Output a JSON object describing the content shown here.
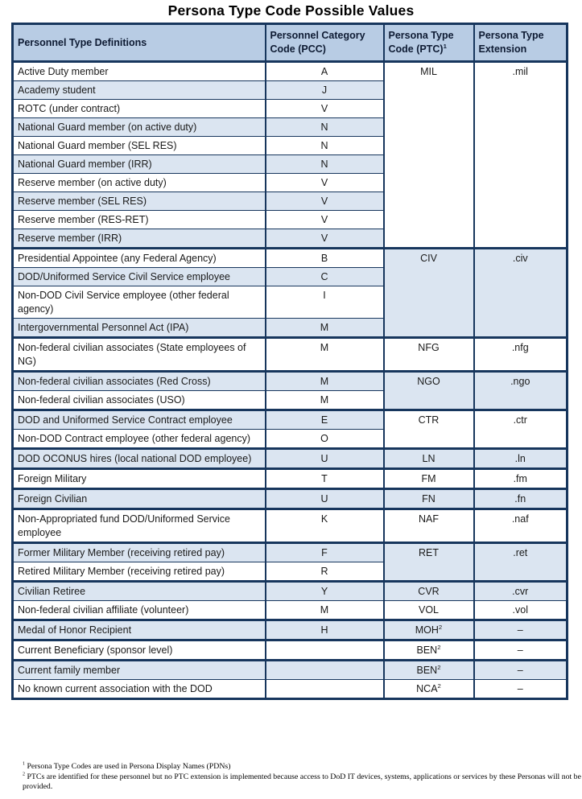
{
  "page": {
    "title": "Persona Type Code Possible Values"
  },
  "table": {
    "headers": [
      {
        "text": "Personnel Type Definitions",
        "sup": null
      },
      {
        "text": "Personnel Category Code (PCC)",
        "sup": null
      },
      {
        "text": "Persona Type Code (PTC)",
        "sup": "1"
      },
      {
        "text": "Persona Type Extension",
        "sup": null
      }
    ],
    "rows": [
      {
        "def": "Active Duty member",
        "pcc": "A",
        "shade": "w",
        "thick": false,
        "group": {
          "ptc": "MIL",
          "sup": null,
          "ext": ".mil",
          "span": 10,
          "shade": "w"
        }
      },
      {
        "def": "Academy student",
        "pcc": "J",
        "shade": "b",
        "thick": false
      },
      {
        "def": "ROTC (under contract)",
        "pcc": "V",
        "shade": "w",
        "thick": false
      },
      {
        "def": "National Guard member (on active duty)",
        "pcc": "N",
        "shade": "b",
        "thick": false
      },
      {
        "def": "National Guard member (SEL RES)",
        "pcc": "N",
        "shade": "w",
        "thick": false
      },
      {
        "def": "National Guard member (IRR)",
        "pcc": "N",
        "shade": "b",
        "thick": false
      },
      {
        "def": "Reserve member (on active duty)",
        "pcc": "V",
        "shade": "w",
        "thick": false
      },
      {
        "def": "Reserve member (SEL RES)",
        "pcc": "V",
        "shade": "b",
        "thick": false
      },
      {
        "def": "Reserve member (RES-RET)",
        "pcc": "V",
        "shade": "w",
        "thick": false
      },
      {
        "def": "Reserve member (IRR)",
        "pcc": "V",
        "shade": "b",
        "thick": false
      },
      {
        "def": "Presidential Appointee (any Federal Agency)",
        "pcc": "B",
        "shade": "w",
        "thick": true,
        "group": {
          "ptc": "CIV",
          "sup": null,
          "ext": ".civ",
          "span": 4,
          "shade": "b"
        }
      },
      {
        "def": "DOD/Uniformed Service Civil Service employee",
        "pcc": "C",
        "shade": "b",
        "thick": false
      },
      {
        "def": "Non-DOD Civil Service employee (other federal agency)",
        "pcc": "I",
        "shade": "w",
        "thick": false
      },
      {
        "def": "Intergovernmental Personnel Act (IPA)",
        "pcc": "M",
        "shade": "b",
        "thick": false
      },
      {
        "def": "Non-federal civilian associates (State employees of NG)",
        "pcc": "M",
        "shade": "w",
        "thick": true,
        "group": {
          "ptc": "NFG",
          "sup": null,
          "ext": ".nfg",
          "span": 1,
          "shade": "w"
        }
      },
      {
        "def": "Non-federal civilian associates (Red Cross)",
        "pcc": "M",
        "shade": "b",
        "thick": true,
        "group": {
          "ptc": "NGO",
          "sup": null,
          "ext": ".ngo",
          "span": 2,
          "shade": "b"
        }
      },
      {
        "def": "Non-federal civilian associates (USO)",
        "pcc": "M",
        "shade": "w",
        "thick": false
      },
      {
        "def": "DOD and Uniformed Service Contract employee",
        "pcc": "E",
        "shade": "b",
        "thick": true,
        "group": {
          "ptc": "CTR",
          "sup": null,
          "ext": ".ctr",
          "span": 2,
          "shade": "w"
        }
      },
      {
        "def": "Non-DOD Contract employee (other federal agency)",
        "pcc": "O",
        "shade": "w",
        "thick": false
      },
      {
        "def": "DOD OCONUS hires (local national DOD employee)",
        "pcc": "U",
        "shade": "b",
        "thick": true,
        "group": {
          "ptc": "LN",
          "sup": null,
          "ext": ".ln",
          "span": 1,
          "shade": "b"
        }
      },
      {
        "def": "Foreign Military",
        "pcc": "T",
        "shade": "w",
        "thick": true,
        "group": {
          "ptc": "FM",
          "sup": null,
          "ext": ".fm",
          "span": 1,
          "shade": "w"
        }
      },
      {
        "def": "Foreign Civilian",
        "pcc": "U",
        "shade": "b",
        "thick": true,
        "group": {
          "ptc": "FN",
          "sup": null,
          "ext": ".fn",
          "span": 1,
          "shade": "b"
        }
      },
      {
        "def": "Non-Appropriated fund DOD/Uniformed Service employee",
        "pcc": "K",
        "shade": "w",
        "thick": true,
        "group": {
          "ptc": "NAF",
          "sup": null,
          "ext": ".naf",
          "span": 1,
          "shade": "w"
        }
      },
      {
        "def": "Former Military Member (receiving retired pay)",
        "pcc": "F",
        "shade": "b",
        "thick": true,
        "group": {
          "ptc": "RET",
          "sup": null,
          "ext": ".ret",
          "span": 2,
          "shade": "b"
        }
      },
      {
        "def": "Retired Military Member (receiving retired pay)",
        "pcc": "R",
        "shade": "w",
        "thick": false
      },
      {
        "def": "Civilian Retiree",
        "pcc": "Y",
        "shade": "b",
        "thick": true,
        "group": {
          "ptc": "CVR",
          "sup": null,
          "ext": ".cvr",
          "span": 1,
          "shade": "b"
        }
      },
      {
        "def": "Non-federal civilian affiliate (volunteer)",
        "pcc": "M",
        "shade": "w",
        "thick": false,
        "group": {
          "ptc": "VOL",
          "sup": null,
          "ext": ".vol",
          "span": 1,
          "shade": "w"
        }
      },
      {
        "def": "Medal of Honor Recipient",
        "pcc": "H",
        "shade": "b",
        "thick": true,
        "group": {
          "ptc": "MOH",
          "sup": "2",
          "ext": "–",
          "span": 1,
          "shade": "b"
        }
      },
      {
        "def": "Current Beneficiary (sponsor level)",
        "pcc": "",
        "shade": "w",
        "thick": true,
        "group": {
          "ptc": "BEN",
          "sup": "2",
          "ext": "–",
          "span": 1,
          "shade": "w"
        }
      },
      {
        "def": "Current family member",
        "pcc": "",
        "shade": "b",
        "thick": true,
        "group": {
          "ptc": "BEN",
          "sup": "2",
          "ext": "–",
          "span": 1,
          "shade": "b"
        }
      },
      {
        "def": "No known current association with the DOD",
        "pcc": "",
        "shade": "w",
        "thick": false,
        "group": {
          "ptc": "NCA",
          "sup": "2",
          "ext": "–",
          "span": 1,
          "shade": "w"
        }
      }
    ]
  },
  "footnotes": [
    {
      "sup": "1",
      "text": "Persona Type Codes are used in Persona Display Names (PDNs)"
    },
    {
      "sup": "2",
      "text": "PTCs are identified for these personnel but no PTC extension is implemented because access to DoD IT devices, systems, applications or services by these Personas will not be provided."
    }
  ]
}
